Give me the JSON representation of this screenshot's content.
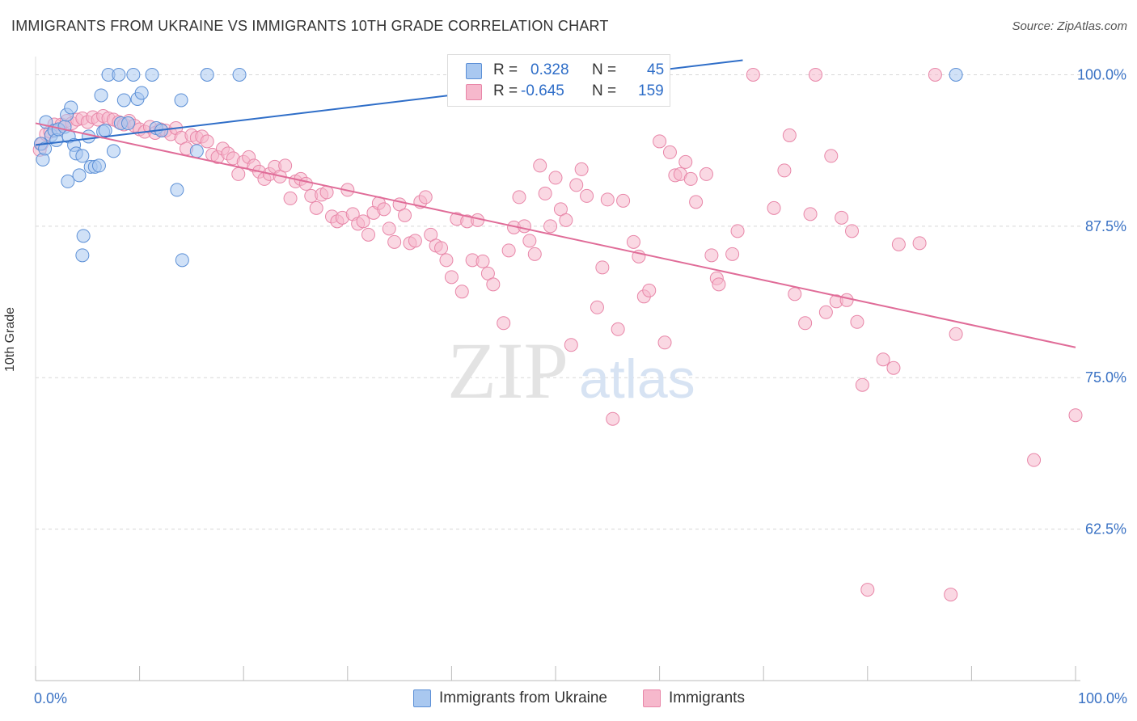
{
  "header": {
    "title": "IMMIGRANTS FROM UKRAINE VS IMMIGRANTS 10TH GRADE CORRELATION CHART",
    "source": "Source: ZipAtlas.com"
  },
  "watermark": {
    "zip": "ZIP",
    "atlas": "atlas"
  },
  "stats": {
    "ukraine": {
      "r_label": "R =",
      "r_value": "0.328",
      "n_label": "N =",
      "n_value": "45"
    },
    "immigrants": {
      "r_label": "R =",
      "r_value": "-0.645",
      "n_label": "N =",
      "n_value": "159"
    }
  },
  "legend": {
    "ukraine": "Immigrants from Ukraine",
    "immigrants": "Immigrants"
  },
  "colors": {
    "ukraine_fill": "#a9c8f0",
    "ukraine_stroke": "#5b8fd6",
    "ukraine_line": "#2f6ec8",
    "immigrants_fill": "#f6b8cc",
    "immigrants_stroke": "#e886a8",
    "immigrants_line": "#e06c98",
    "tick_label": "#3a72c4",
    "grid": "#d8d8d8"
  },
  "chart_data": {
    "type": "scatter",
    "xlabel": "",
    "ylabel": "10th Grade",
    "xlim": [
      0,
      100
    ],
    "ylim": [
      50,
      101.5
    ],
    "x_tick_labels": [
      {
        "value": 0,
        "label": "0.0%"
      },
      {
        "value": 100,
        "label": "100.0%"
      }
    ],
    "y_tick_labels": [
      {
        "value": 100,
        "label": "100.0%"
      },
      {
        "value": 87.5,
        "label": "87.5%"
      },
      {
        "value": 75,
        "label": "75.0%"
      },
      {
        "value": 62.5,
        "label": "62.5%"
      }
    ],
    "grid": true,
    "legend_position": "bottom-center",
    "series": [
      {
        "name": "Immigrants from Ukraine",
        "color": "#a9c8f0",
        "trend": {
          "x": [
            0,
            68
          ],
          "y": [
            94.2,
            101.2
          ]
        },
        "points": [
          [
            0.5,
            94.3
          ],
          [
            0.7,
            93.0
          ],
          [
            0.9,
            93.9
          ],
          [
            1.0,
            96.1
          ],
          [
            1.5,
            95.0
          ],
          [
            1.8,
            95.4
          ],
          [
            2.0,
            94.6
          ],
          [
            2.2,
            95.5
          ],
          [
            2.8,
            95.7
          ],
          [
            3.0,
            96.7
          ],
          [
            3.2,
            94.9
          ],
          [
            3.1,
            91.2
          ],
          [
            3.4,
            97.3
          ],
          [
            3.7,
            94.2
          ],
          [
            3.9,
            93.5
          ],
          [
            4.2,
            91.7
          ],
          [
            4.5,
            93.3
          ],
          [
            4.6,
            86.7
          ],
          [
            4.5,
            85.1
          ],
          [
            5.1,
            94.9
          ],
          [
            5.3,
            92.4
          ],
          [
            5.7,
            92.4
          ],
          [
            6.1,
            92.5
          ],
          [
            6.3,
            98.3
          ],
          [
            6.5,
            95.3
          ],
          [
            6.7,
            95.4
          ],
          [
            7.0,
            100.0
          ],
          [
            7.5,
            93.7
          ],
          [
            8.0,
            100.0
          ],
          [
            8.2,
            96.0
          ],
          [
            8.5,
            97.9
          ],
          [
            8.9,
            96.0
          ],
          [
            9.4,
            100.0
          ],
          [
            9.8,
            98.0
          ],
          [
            10.2,
            98.5
          ],
          [
            11.2,
            100.0
          ],
          [
            11.6,
            95.6
          ],
          [
            12.1,
            95.4
          ],
          [
            13.6,
            90.5
          ],
          [
            14.0,
            97.9
          ],
          [
            14.1,
            84.7
          ],
          [
            15.5,
            93.7
          ],
          [
            16.5,
            100.0
          ],
          [
            19.6,
            100.0
          ],
          [
            88.5,
            100.0
          ]
        ]
      },
      {
        "name": "Immigrants",
        "color": "#f6b8cc",
        "trend": {
          "x": [
            0,
            100
          ],
          "y": [
            96.0,
            77.5
          ]
        },
        "points": [
          [
            0.4,
            93.8
          ],
          [
            0.6,
            94.3
          ],
          [
            1.0,
            95.1
          ],
          [
            1.4,
            95.3
          ],
          [
            1.8,
            95.9
          ],
          [
            2.2,
            95.5
          ],
          [
            2.5,
            95.9
          ],
          [
            3.0,
            96.2
          ],
          [
            3.5,
            96.0
          ],
          [
            4.0,
            96.3
          ],
          [
            4.5,
            96.4
          ],
          [
            5.0,
            96.1
          ],
          [
            5.5,
            96.5
          ],
          [
            6.0,
            96.3
          ],
          [
            6.5,
            96.6
          ],
          [
            7.0,
            96.4
          ],
          [
            7.5,
            96.3
          ],
          [
            8.0,
            96.1
          ],
          [
            8.5,
            95.9
          ],
          [
            9.0,
            96.2
          ],
          [
            9.5,
            95.8
          ],
          [
            10.0,
            95.5
          ],
          [
            10.5,
            95.3
          ],
          [
            11.0,
            95.7
          ],
          [
            11.5,
            95.2
          ],
          [
            12.0,
            95.5
          ],
          [
            12.5,
            95.4
          ],
          [
            13.0,
            95.1
          ],
          [
            13.5,
            95.6
          ],
          [
            14.0,
            94.8
          ],
          [
            14.5,
            93.9
          ],
          [
            15.0,
            95.0
          ],
          [
            15.5,
            94.8
          ],
          [
            16.0,
            94.9
          ],
          [
            16.5,
            94.5
          ],
          [
            17.0,
            93.4
          ],
          [
            17.5,
            93.2
          ],
          [
            18.0,
            93.9
          ],
          [
            18.5,
            93.5
          ],
          [
            19.0,
            93.1
          ],
          [
            19.5,
            91.8
          ],
          [
            20.0,
            92.8
          ],
          [
            20.5,
            93.2
          ],
          [
            21.0,
            92.5
          ],
          [
            21.5,
            92.0
          ],
          [
            22.0,
            91.4
          ],
          [
            22.5,
            91.8
          ],
          [
            23.0,
            92.4
          ],
          [
            23.5,
            91.6
          ],
          [
            24.0,
            92.5
          ],
          [
            24.5,
            89.8
          ],
          [
            25.0,
            91.2
          ],
          [
            25.5,
            91.4
          ],
          [
            26.0,
            91.0
          ],
          [
            26.5,
            90.0
          ],
          [
            27.0,
            89.0
          ],
          [
            27.5,
            90.1
          ],
          [
            28.0,
            90.3
          ],
          [
            28.5,
            88.3
          ],
          [
            29.0,
            87.9
          ],
          [
            29.5,
            88.2
          ],
          [
            30.0,
            90.5
          ],
          [
            30.5,
            88.5
          ],
          [
            31.0,
            87.7
          ],
          [
            31.5,
            87.9
          ],
          [
            32.0,
            86.8
          ],
          [
            32.5,
            88.6
          ],
          [
            33.0,
            89.4
          ],
          [
            33.5,
            88.9
          ],
          [
            34.0,
            87.3
          ],
          [
            34.5,
            86.2
          ],
          [
            35.0,
            89.3
          ],
          [
            35.5,
            88.4
          ],
          [
            36.0,
            86.1
          ],
          [
            36.5,
            86.3
          ],
          [
            37.0,
            89.5
          ],
          [
            37.5,
            89.9
          ],
          [
            38.0,
            86.8
          ],
          [
            38.5,
            85.9
          ],
          [
            39.0,
            85.7
          ],
          [
            39.5,
            84.7
          ],
          [
            40.0,
            83.3
          ],
          [
            40.5,
            88.1
          ],
          [
            41.0,
            82.1
          ],
          [
            41.5,
            87.9
          ],
          [
            42.0,
            84.7
          ],
          [
            42.5,
            88.0
          ],
          [
            43.0,
            84.6
          ],
          [
            43.5,
            83.6
          ],
          [
            44.0,
            82.7
          ],
          [
            45.0,
            79.5
          ],
          [
            45.5,
            85.5
          ],
          [
            46.0,
            87.4
          ],
          [
            46.5,
            89.9
          ],
          [
            47.0,
            87.5
          ],
          [
            47.5,
            86.3
          ],
          [
            48.0,
            85.2
          ],
          [
            48.5,
            92.5
          ],
          [
            49.0,
            90.2
          ],
          [
            49.5,
            87.5
          ],
          [
            50.0,
            91.5
          ],
          [
            50.5,
            88.9
          ],
          [
            51.0,
            88.0
          ],
          [
            51.5,
            77.7
          ],
          [
            52.0,
            90.9
          ],
          [
            52.5,
            92.2
          ],
          [
            53.0,
            90.0
          ],
          [
            54.0,
            80.8
          ],
          [
            54.5,
            84.1
          ],
          [
            55.0,
            89.7
          ],
          [
            55.5,
            71.6
          ],
          [
            56.0,
            79.0
          ],
          [
            56.5,
            89.6
          ],
          [
            57.5,
            86.2
          ],
          [
            58.0,
            85.0
          ],
          [
            58.5,
            81.7
          ],
          [
            59.0,
            82.2
          ],
          [
            60.0,
            94.5
          ],
          [
            60.5,
            77.9
          ],
          [
            61.0,
            93.6
          ],
          [
            61.5,
            91.7
          ],
          [
            62.0,
            91.8
          ],
          [
            62.5,
            92.8
          ],
          [
            63.0,
            91.4
          ],
          [
            63.5,
            89.5
          ],
          [
            64.5,
            91.8
          ],
          [
            65.0,
            85.1
          ],
          [
            65.5,
            83.2
          ],
          [
            65.7,
            82.7
          ],
          [
            67.0,
            85.2
          ],
          [
            67.5,
            87.1
          ],
          [
            69.0,
            100.0
          ],
          [
            71.0,
            89.0
          ],
          [
            72.0,
            92.1
          ],
          [
            72.5,
            95.0
          ],
          [
            73.0,
            81.9
          ],
          [
            74.0,
            79.5
          ],
          [
            74.5,
            88.5
          ],
          [
            75.0,
            100.0
          ],
          [
            76.0,
            80.4
          ],
          [
            76.5,
            93.3
          ],
          [
            77.0,
            81.3
          ],
          [
            77.5,
            88.2
          ],
          [
            78.0,
            81.4
          ],
          [
            78.5,
            87.1
          ],
          [
            79.0,
            79.6
          ],
          [
            79.5,
            74.4
          ],
          [
            80.0,
            57.5
          ],
          [
            81.5,
            76.5
          ],
          [
            82.5,
            75.8
          ],
          [
            83.0,
            86.0
          ],
          [
            85.0,
            86.1
          ],
          [
            86.5,
            100.0
          ],
          [
            88.0,
            57.1
          ],
          [
            88.5,
            78.6
          ],
          [
            96.0,
            68.2
          ],
          [
            100.0,
            71.9
          ]
        ]
      }
    ]
  }
}
